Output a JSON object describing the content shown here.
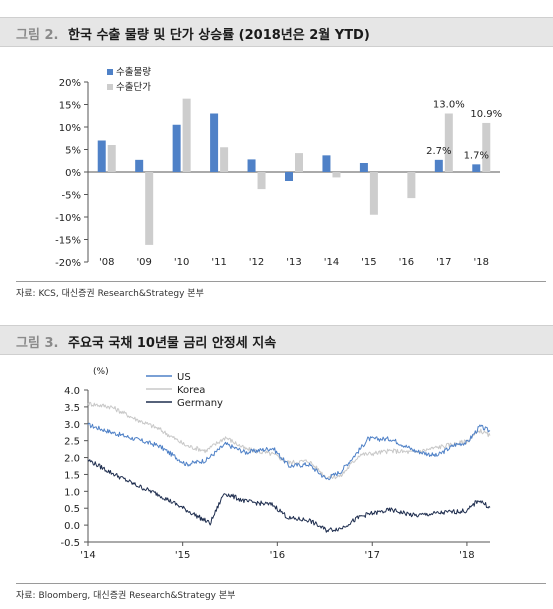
{
  "figures": [
    {
      "label": "그림 2.",
      "title": "한국 수출 물량 및 단가 상승률 (2018년은 2월 YTD)",
      "source": "자료: KCS, 대신증권 Research&Strategy 본부"
    },
    {
      "label": "그림 3.",
      "title": "주요국 국채 10년물 금리 안정세 지속",
      "source": "자료: Bloomberg, 대신증권 Research&Strategy 본부"
    }
  ],
  "chart_data": [
    {
      "type": "bar",
      "categories": [
        "'08",
        "'09",
        "'10",
        "'11",
        "'12",
        "'13",
        "'14",
        "'15",
        "'16",
        "'17",
        "'18"
      ],
      "series": [
        {
          "name": "수출물량",
          "color": "#4f81c7",
          "values": [
            7.0,
            2.7,
            10.5,
            13.0,
            2.8,
            -2.0,
            3.7,
            2.0,
            0.0,
            2.7,
            1.7
          ]
        },
        {
          "name": "수출단가",
          "color": "#cdcdcd",
          "values": [
            6.0,
            -16.2,
            16.3,
            5.5,
            -3.8,
            4.2,
            -1.2,
            -9.5,
            -5.8,
            13.0,
            10.9
          ]
        }
      ],
      "ylim": [
        -20,
        20
      ],
      "yticks": [
        -20,
        -15,
        -10,
        -5,
        0,
        5,
        10,
        15,
        20
      ],
      "ytick_labels": [
        "-20%",
        "-15%",
        "-10%",
        "-5%",
        "0%",
        "5%",
        "10%",
        "15%",
        "20%"
      ],
      "data_labels": [
        {
          "text": "2.7%",
          "category": "'17",
          "series": 0
        },
        {
          "text": "13.0%",
          "category": "'17",
          "series": 1
        },
        {
          "text": "1.7%",
          "category": "'18",
          "series": 0
        },
        {
          "text": "10.9%",
          "category": "'18",
          "series": 1
        }
      ],
      "legend_position": "top-left",
      "grid": false
    },
    {
      "type": "line",
      "unit_label": "(%)",
      "x_range": [
        "2014-01-01",
        "2018-03-31"
      ],
      "xticks": [
        "2014-01-01",
        "2015-01-01",
        "2016-01-01",
        "2017-01-01",
        "2018-01-01"
      ],
      "xtick_labels": [
        "'14",
        "'15",
        "'16",
        "'17",
        "'18"
      ],
      "ylim": [
        -0.5,
        4.0
      ],
      "yticks": [
        -0.5,
        0.0,
        0.5,
        1.0,
        1.5,
        2.0,
        2.5,
        3.0,
        3.5,
        4.0
      ],
      "ytick_labels": [
        "-0.5",
        "0.0",
        "0.5",
        "1.0",
        "1.5",
        "2.0",
        "2.5",
        "3.0",
        "3.5",
        "4.0"
      ],
      "legend_position": "top-center",
      "grid": false,
      "series": [
        {
          "name": "US",
          "color": "#4f81c7",
          "x": [
            "2014-01-01",
            "2014-04-01",
            "2014-07-01",
            "2014-10-01",
            "2015-01-15",
            "2015-04-01",
            "2015-06-15",
            "2015-09-01",
            "2015-12-15",
            "2016-02-15",
            "2016-05-01",
            "2016-07-08",
            "2016-09-01",
            "2016-11-15",
            "2016-12-15",
            "2017-03-15",
            "2017-06-15",
            "2017-09-07",
            "2017-11-15",
            "2018-01-02",
            "2018-02-20",
            "2018-03-31"
          ],
          "y": [
            2.97,
            2.75,
            2.55,
            2.35,
            1.8,
            1.92,
            2.4,
            2.15,
            2.28,
            1.75,
            1.8,
            1.37,
            1.58,
            2.25,
            2.55,
            2.55,
            2.2,
            2.05,
            2.38,
            2.45,
            2.92,
            2.78
          ]
        },
        {
          "name": "Korea",
          "color": "#c8c8c8",
          "x": [
            "2014-01-01",
            "2014-04-01",
            "2014-07-01",
            "2014-10-01",
            "2015-01-15",
            "2015-04-01",
            "2015-06-15",
            "2015-09-01",
            "2015-12-15",
            "2016-02-15",
            "2016-05-01",
            "2016-07-08",
            "2016-09-01",
            "2016-11-15",
            "2016-12-15",
            "2017-03-15",
            "2017-06-15",
            "2017-09-07",
            "2017-11-15",
            "2018-01-02",
            "2018-02-20",
            "2018-03-31"
          ],
          "y": [
            3.6,
            3.5,
            3.15,
            2.85,
            2.35,
            2.2,
            2.6,
            2.25,
            2.1,
            1.85,
            1.9,
            1.42,
            1.45,
            2.1,
            2.1,
            2.2,
            2.15,
            2.3,
            2.4,
            2.48,
            2.8,
            2.65
          ]
        },
        {
          "name": "Germany",
          "color": "#1f2e4f",
          "x": [
            "2014-01-01",
            "2014-04-01",
            "2014-07-01",
            "2014-10-01",
            "2015-01-15",
            "2015-04-17",
            "2015-06-10",
            "2015-09-01",
            "2015-12-15",
            "2016-02-15",
            "2016-05-01",
            "2016-07-08",
            "2016-09-01",
            "2016-11-15",
            "2016-12-15",
            "2017-03-15",
            "2017-06-15",
            "2017-09-07",
            "2017-11-15",
            "2018-01-02",
            "2018-02-15",
            "2018-03-31"
          ],
          "y": [
            1.93,
            1.55,
            1.2,
            0.9,
            0.45,
            0.05,
            0.95,
            0.7,
            0.6,
            0.2,
            0.15,
            -0.15,
            -0.1,
            0.25,
            0.32,
            0.45,
            0.28,
            0.35,
            0.4,
            0.42,
            0.75,
            0.52
          ]
        }
      ]
    }
  ]
}
